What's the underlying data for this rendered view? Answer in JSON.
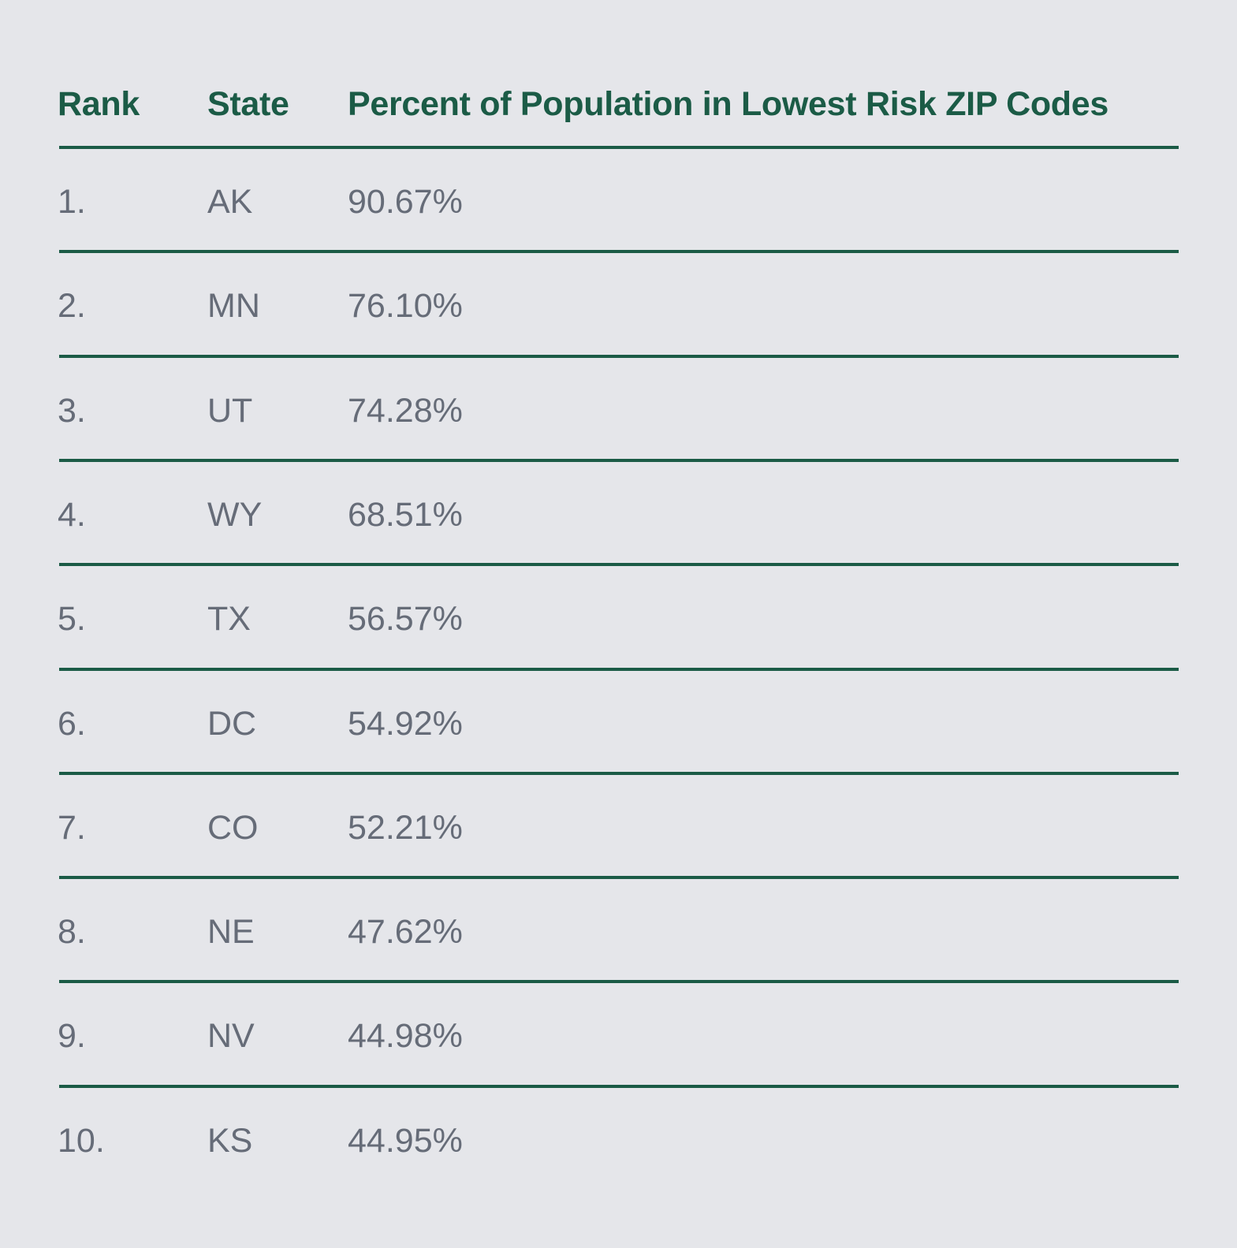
{
  "chart_data": {
    "type": "table",
    "columns": [
      "Rank",
      "State",
      "Percent of Population in Lowest Risk ZIP Codes"
    ],
    "rows": [
      [
        "1.",
        "AK",
        "90.67%"
      ],
      [
        "2.",
        "MN",
        "76.10%"
      ],
      [
        "3.",
        "UT",
        "74.28%"
      ],
      [
        "4.",
        "WY",
        "68.51%"
      ],
      [
        "5.",
        "TX",
        "56.57%"
      ],
      [
        "6.",
        "DC",
        "54.92%"
      ],
      [
        "7.",
        "CO",
        "52.21%"
      ],
      [
        "8.",
        "NE",
        "47.62%"
      ],
      [
        "9.",
        "NV",
        "44.98%"
      ],
      [
        "10.",
        "KS",
        "44.95%"
      ]
    ]
  },
  "colors": {
    "background": "#e5e6ea",
    "header_text": "#1b5b46",
    "rule": "#1b5b46",
    "body_text": "#666c78"
  }
}
